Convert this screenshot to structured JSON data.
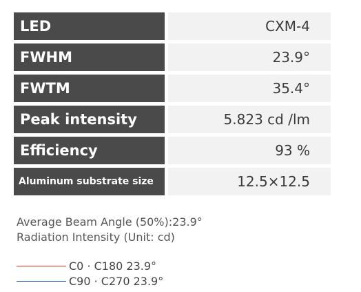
{
  "specs": [
    {
      "label": "LED",
      "value": "CXM-4"
    },
    {
      "label": "FWHM",
      "value": "23.9°"
    },
    {
      "label": "FWTM",
      "value": "35.4°"
    },
    {
      "label": "Peak intensity",
      "value": "5.823 cd /lm"
    },
    {
      "label": "Efficiency",
      "value": "93 %"
    },
    {
      "label": "Aluminum substrate size",
      "value": "12.5×12.5"
    }
  ],
  "notes": {
    "beam_angle": "Average Beam Angle (50%):23.9°",
    "radiation": "Radiation Intensity (Unit: cd)"
  },
  "legend": [
    {
      "label": "C0 · C180 23.9°",
      "color": "#e03030"
    },
    {
      "label": "C90 · C270 23.9°",
      "color": "#2f5fb0"
    }
  ],
  "colors": {
    "label_bg": "#4a4a4a",
    "value_bg": "#f2f2f2"
  }
}
